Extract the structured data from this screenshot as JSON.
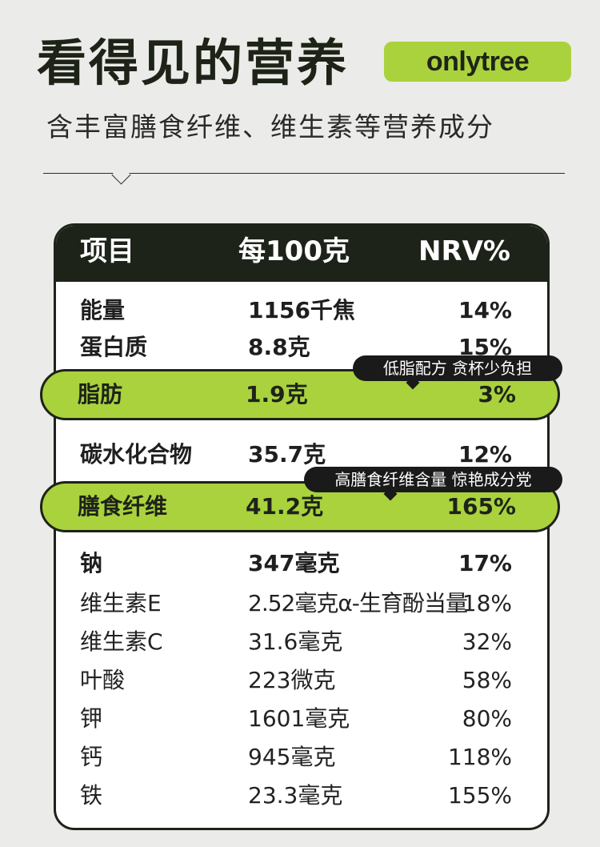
{
  "header": {
    "title": "看得见的营养",
    "brand": "onlytree",
    "subtitle": "含丰富膳食纤维、维生素等营养成分"
  },
  "table": {
    "columns": [
      "项目",
      "每100克",
      "NRV%"
    ],
    "rows": [
      {
        "item": "能量",
        "amount": "1156千焦",
        "nrv": "14%"
      },
      {
        "item": "蛋白质",
        "amount": "8.8克",
        "nrv": "15%"
      },
      {
        "item": "脂肪",
        "amount": "1.9克",
        "nrv": "3%"
      },
      {
        "item": "碳水化合物",
        "amount": "35.7克",
        "nrv": "12%"
      },
      {
        "item": "膳食纤维",
        "amount": "41.2克",
        "nrv": "165%"
      },
      {
        "item": "钠",
        "amount": "347毫克",
        "nrv": "17%"
      },
      {
        "item": "维生素E",
        "amount": "2.52毫克α-生育酚当量",
        "nrv": "18%"
      },
      {
        "item": "维生素C",
        "amount": "31.6毫克",
        "nrv": "32%"
      },
      {
        "item": "叶酸",
        "amount": "223微克",
        "nrv": "58%"
      },
      {
        "item": "钾",
        "amount": "1601毫克",
        "nrv": "80%"
      },
      {
        "item": "钙",
        "amount": "945毫克",
        "nrv": "118%"
      },
      {
        "item": "铁",
        "amount": "23.3毫克",
        "nrv": "155%"
      }
    ]
  },
  "callouts": {
    "fat": "低脂配方 贪杯少负担",
    "fiber": "高膳食纤维含量 惊艳成分党"
  },
  "colors": {
    "accent": "#a9d23d",
    "dark": "#1e2319",
    "background": "#ebebe9"
  }
}
